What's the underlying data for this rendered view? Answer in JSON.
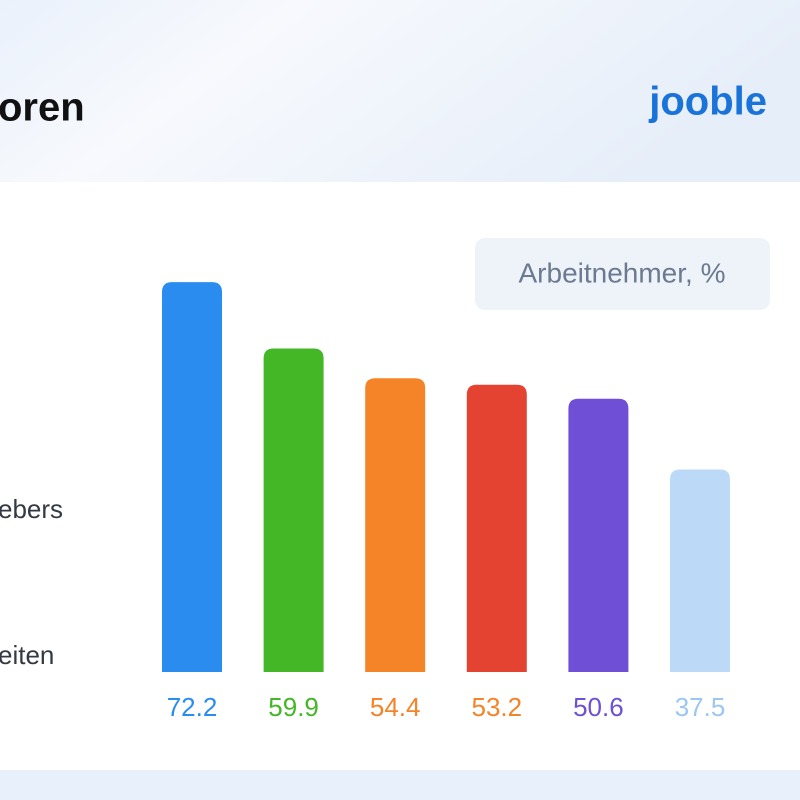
{
  "chart_data": {
    "type": "bar",
    "title": "oren",
    "logo": "jooble",
    "side_labels": [
      "ebers",
      "eiten"
    ],
    "legend": "Arbeitnehmer, %",
    "categories": [
      null,
      null,
      null,
      null,
      null,
      null
    ],
    "values": [
      72.2,
      59.9,
      54.4,
      53.2,
      50.6,
      37.5
    ],
    "colors": [
      "#2b8cf0",
      "#43b725",
      "#f58327",
      "#e54331",
      "#6e4fd6",
      "#bcdaf8"
    ],
    "label_colors": [
      "#2b8cf0",
      "#43b725",
      "#f58327",
      "#f58327",
      "#6e4fd6",
      "#9cc7f2"
    ],
    "ylim": [
      0,
      100
    ]
  }
}
